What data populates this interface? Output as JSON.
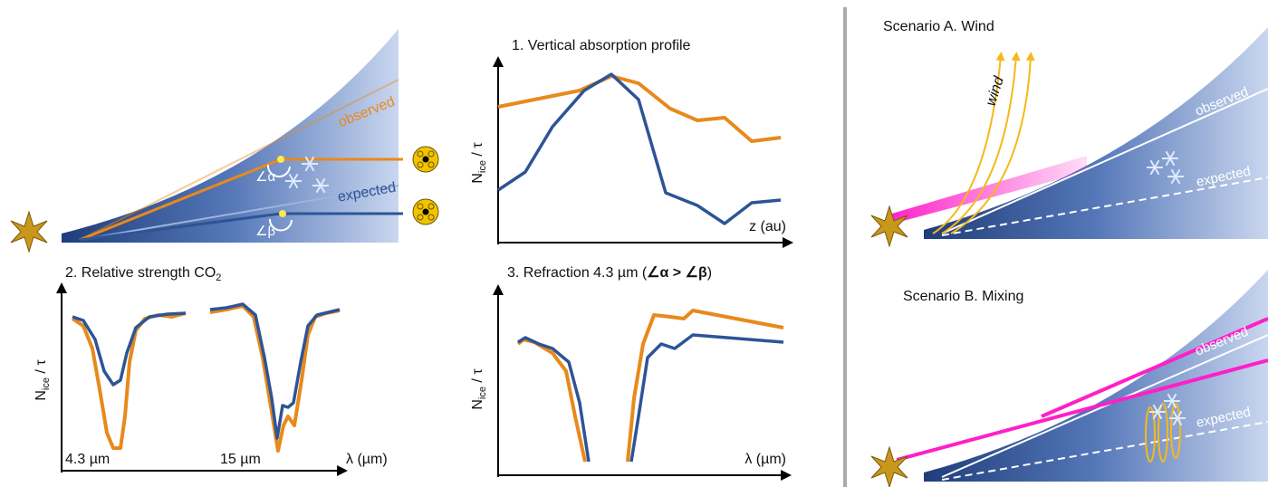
{
  "left_panel": {
    "observed": "observed",
    "expected": "expected",
    "angle_alpha": "∠α",
    "angle_beta": "∠β"
  },
  "panel1": {
    "title": "1. Vertical absorption profile",
    "y_label": {
      "main": "N",
      "sub": "ice",
      "rest": " / τ"
    },
    "x_label": "z (au)"
  },
  "panel2": {
    "title": {
      "main": "2. Relative strength CO",
      "sub": "2"
    },
    "y_label": {
      "main": "N",
      "sub": "ice",
      "rest": " / τ"
    },
    "band_labels": [
      "4.3 µm",
      "15 µm"
    ],
    "x_label": "λ (µm)"
  },
  "panel3": {
    "title": {
      "pre": "3. Refraction 4.3 µm (",
      "alpha": "∠α",
      "op": " > ",
      "beta": "∠β",
      "post": ")"
    },
    "y_label": {
      "main": "N",
      "sub": "ice",
      "rest": " / τ"
    },
    "x_label": "λ (µm)"
  },
  "scenario_a": {
    "title": "Scenario A. Wind",
    "wind": "wind",
    "observed": "observed",
    "expected": "expected"
  },
  "scenario_b": {
    "title": "Scenario B. Mixing",
    "observed": "observed",
    "expected": "expected"
  }
}
